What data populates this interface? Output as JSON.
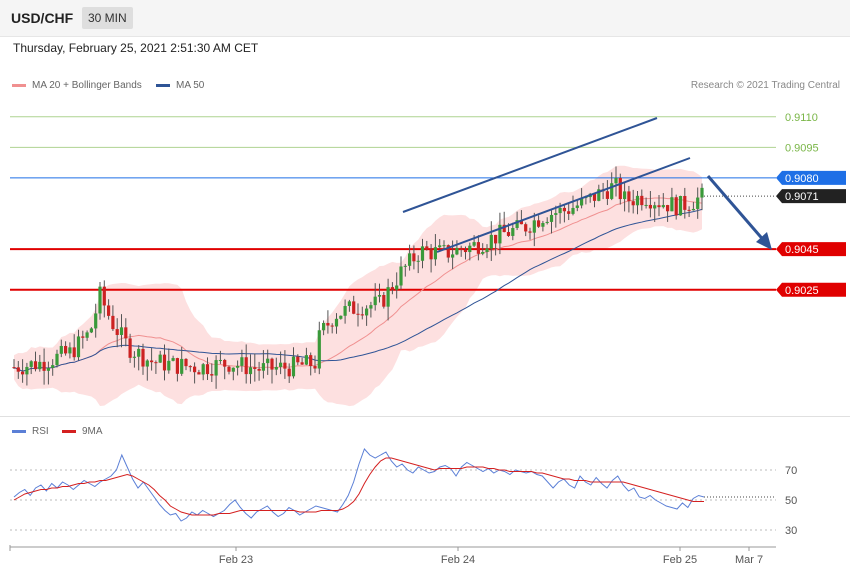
{
  "header": {
    "symbol": "USD/CHF",
    "interval": "30 MIN",
    "datetime": "Thursday, February 25, 2021 2:51:30 AM CET"
  },
  "legend": {
    "ma20": "MA 20 + Bollinger Bands",
    "ma50": "MA 50",
    "copyright": "Research © 2021 Trading Central",
    "colors": {
      "ma20": "#f09090",
      "ma50": "#2f5496"
    }
  },
  "rsi_legend": {
    "rsi": "RSI",
    "ma": "9MA",
    "colors": {
      "rsi": "#5b7fd6",
      "ma": "#d42020"
    }
  },
  "chart_data": {
    "type": "candlestick",
    "title": "USD/CHF",
    "ylim": [
      0.8963,
      0.9132
    ],
    "x_ticks": [
      "Feb 23",
      "Feb 24",
      "Feb 25",
      "Mar 7"
    ],
    "levels": [
      {
        "label": "0.9110",
        "value": 0.911,
        "style": "resistance",
        "color": "#7ab648"
      },
      {
        "label": "0.9095",
        "value": 0.9095,
        "style": "resistance",
        "color": "#7ab648"
      },
      {
        "label": "0.9080",
        "value": 0.908,
        "style": "pivot",
        "color": "#1e6fe6"
      },
      {
        "label": "0.9071",
        "value": 0.9071,
        "style": "last",
        "color": "#222222"
      },
      {
        "label": "0.9045",
        "value": 0.9045,
        "style": "support",
        "color": "#e00000"
      },
      {
        "label": "0.9025",
        "value": 0.9025,
        "style": "support",
        "color": "#e00000"
      }
    ],
    "rsi": {
      "ticks": [
        "70",
        "50",
        "30"
      ],
      "tick_values": [
        70,
        50,
        30
      ],
      "ylim": [
        20,
        90
      ],
      "last_rsi": 52,
      "rsi_series": [
        52,
        55,
        57,
        53,
        58,
        60,
        56,
        61,
        58,
        62,
        60,
        57,
        60,
        63,
        61,
        59,
        62,
        64,
        66,
        70,
        80,
        72,
        64,
        58,
        62,
        57,
        52,
        47,
        43,
        40,
        41,
        36,
        38,
        42,
        40,
        43,
        41,
        39,
        41,
        43,
        47,
        50,
        45,
        41,
        38,
        42,
        44,
        46,
        42,
        39,
        41,
        45,
        43,
        40,
        42,
        44,
        46,
        45,
        44,
        43,
        42,
        47,
        53,
        62,
        74,
        84,
        80,
        78,
        80,
        82,
        76,
        72,
        74,
        70,
        68,
        72,
        70,
        68,
        69,
        72,
        73,
        71,
        66,
        72,
        75,
        73,
        71,
        69,
        71,
        68,
        70,
        69,
        67,
        70,
        69,
        68,
        69,
        67,
        66,
        62,
        58,
        62,
        64,
        60,
        58,
        66,
        62,
        60,
        65,
        61,
        58,
        63,
        66,
        60,
        56,
        58,
        52,
        51,
        53,
        50,
        48,
        46,
        45,
        44,
        48,
        45,
        51,
        53,
        52
      ],
      "ma_series": [
        50,
        52,
        54,
        55,
        56,
        57,
        57,
        58,
        58,
        59,
        59,
        60,
        61,
        61,
        62,
        62,
        63,
        63,
        64,
        65,
        66,
        67,
        66,
        64,
        62,
        60,
        57,
        53,
        50,
        46,
        44,
        42,
        41,
        40,
        40,
        40,
        40,
        40,
        41,
        41,
        41,
        42,
        43,
        43,
        43,
        43,
        43,
        43,
        43,
        43,
        43,
        43,
        43,
        42,
        42,
        42,
        42,
        43,
        43,
        43,
        43,
        44,
        46,
        49,
        54,
        61,
        67,
        72,
        76,
        78,
        78,
        77,
        76,
        75,
        74,
        73,
        72,
        71,
        70,
        71,
        71,
        71,
        71,
        71,
        72,
        72,
        72,
        72,
        71,
        71,
        70,
        70,
        69,
        69,
        69,
        69,
        69,
        68,
        68,
        67,
        66,
        65,
        64,
        64,
        63,
        63,
        63,
        62,
        62,
        62,
        62,
        62,
        62,
        62,
        61,
        60,
        59,
        58,
        57,
        56,
        55,
        54,
        53,
        52,
        51,
        50,
        49,
        49,
        49
      ]
    }
  }
}
